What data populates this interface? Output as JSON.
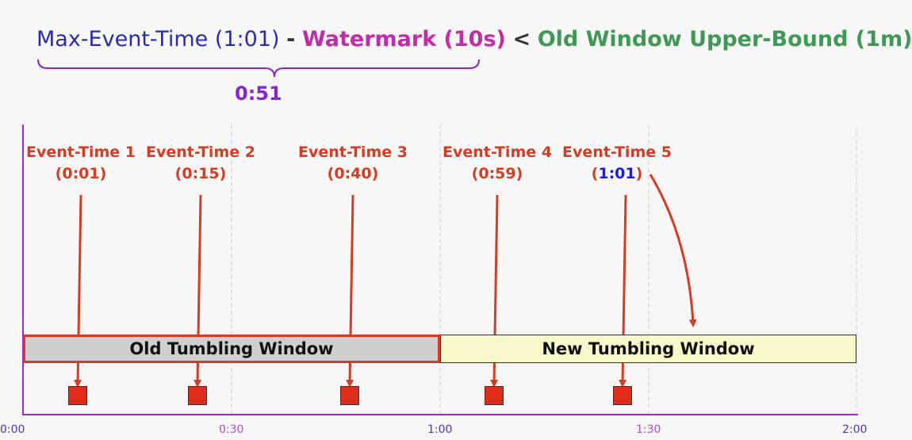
{
  "formula": {
    "max_event_time": "Max-Event-Time (1:01)",
    "minus": "-",
    "watermark": "Watermark (10s)",
    "less_than": "<",
    "upper_bound": "Old Window Upper-Bound (1m)",
    "result": "0:51"
  },
  "events": [
    {
      "name": "Event-Time 1",
      "time": "(0:01)",
      "arrow_target_sec": 8
    },
    {
      "name": "Event-Time 2",
      "time": "(0:15)",
      "arrow_target_sec": 25
    },
    {
      "name": "Event-Time 3",
      "time": "(0:40)",
      "arrow_target_sec": 47
    },
    {
      "name": "Event-Time 4",
      "time": "(0:59)",
      "arrow_target_sec": 67
    },
    {
      "name": "Event-Time 5",
      "time_prefix": "(",
      "time_value": "1:01",
      "time_suffix": ")",
      "arrow_target_sec": 86
    }
  ],
  "windows": {
    "old_label": "Old Tumbling Window",
    "new_label": "New Tumbling Window"
  },
  "axis": {
    "ticks": [
      "0:00",
      "0:30",
      "1:00",
      "1:30",
      "2:00"
    ],
    "tick_colors": [
      "#5a2dbf",
      "#b04cd0",
      "#5a2dbf",
      "#b04cd0",
      "#5a2dbf"
    ]
  },
  "colors": {
    "event_red": "#d93a22",
    "axis_purple": "#a328d0",
    "late_blue": "#1d1dd6"
  }
}
